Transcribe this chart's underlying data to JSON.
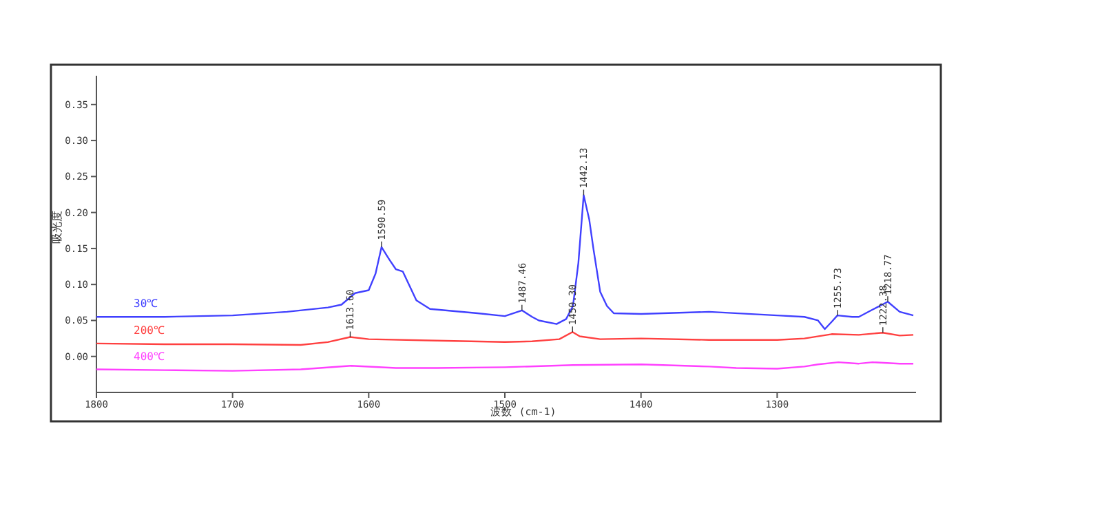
{
  "chart_data": {
    "type": "line",
    "xlabel": "波数 (cm-1)",
    "ylabel": "吸光度",
    "xlim": [
      1800,
      1198
    ],
    "ylim": [
      -0.05,
      0.39
    ],
    "xticks": [
      1800,
      1700,
      1600,
      1500,
      1400,
      1300
    ],
    "yticks": [
      {
        "value": 0,
        "label": "0.00"
      },
      {
        "value": 0.05,
        "label": "0.05"
      },
      {
        "value": 0.1,
        "label": "0.10"
      },
      {
        "value": 0.15,
        "label": "0.15"
      },
      {
        "value": 0.2,
        "label": "0.20"
      },
      {
        "value": 0.25,
        "label": "0.25"
      },
      {
        "value": 0.3,
        "label": "0.30"
      },
      {
        "value": 0.35,
        "label": "0.35"
      }
    ],
    "grid": false,
    "legend": false,
    "marker": "none",
    "line_style": "solid",
    "series": [
      {
        "name": "30℃",
        "color": "#4040ff",
        "x": [
          1800,
          1750,
          1700,
          1660,
          1630,
          1620,
          1610,
          1600,
          1595,
          1590.59,
          1585,
          1580,
          1575,
          1570,
          1565,
          1555,
          1520,
          1500,
          1487.46,
          1480,
          1475,
          1462,
          1455,
          1450,
          1446,
          1442.13,
          1438,
          1435,
          1430,
          1425,
          1420,
          1400,
          1350,
          1300,
          1280,
          1270,
          1265,
          1260,
          1255.73,
          1245,
          1240,
          1230,
          1218.77,
          1210,
          1200
        ],
        "values": [
          0.055,
          0.055,
          0.057,
          0.062,
          0.068,
          0.072,
          0.088,
          0.092,
          0.115,
          0.152,
          0.135,
          0.121,
          0.118,
          0.098,
          0.078,
          0.066,
          0.06,
          0.056,
          0.064,
          0.055,
          0.05,
          0.045,
          0.052,
          0.07,
          0.13,
          0.224,
          0.19,
          0.15,
          0.09,
          0.07,
          0.06,
          0.059,
          0.062,
          0.057,
          0.055,
          0.05,
          0.038,
          0.048,
          0.057,
          0.055,
          0.055,
          0.065,
          0.076,
          0.062,
          0.057
        ]
      },
      {
        "name": "200℃",
        "color": "#ff4040",
        "x": [
          1800,
          1750,
          1700,
          1650,
          1630,
          1613.6,
          1600,
          1550,
          1500,
          1480,
          1460,
          1450.3,
          1445,
          1430,
          1400,
          1350,
          1300,
          1280,
          1260,
          1240,
          1222.38,
          1210,
          1200
        ],
        "values": [
          0.018,
          0.017,
          0.017,
          0.016,
          0.02,
          0.027,
          0.024,
          0.022,
          0.02,
          0.021,
          0.024,
          0.034,
          0.028,
          0.024,
          0.025,
          0.023,
          0.023,
          0.025,
          0.031,
          0.03,
          0.033,
          0.029,
          0.03
        ]
      },
      {
        "name": "400℃",
        "color": "#ff40ff",
        "x": [
          1800,
          1750,
          1700,
          1650,
          1613,
          1580,
          1550,
          1500,
          1450,
          1400,
          1350,
          1330,
          1300,
          1280,
          1270,
          1255,
          1240,
          1230,
          1210,
          1200
        ],
        "values": [
          -0.018,
          -0.019,
          -0.02,
          -0.018,
          -0.013,
          -0.016,
          -0.016,
          -0.015,
          -0.012,
          -0.011,
          -0.014,
          -0.016,
          -0.017,
          -0.014,
          -0.011,
          -0.008,
          -0.01,
          -0.008,
          -0.01,
          -0.01
        ]
      }
    ],
    "annotations": [
      {
        "text": "1590.59",
        "x": 1590.59,
        "y": 0.152
      },
      {
        "text": "1487.46",
        "x": 1487.46,
        "y": 0.064
      },
      {
        "text": "1442.13",
        "x": 1442.13,
        "y": 0.224
      },
      {
        "text": "1255.73",
        "x": 1255.73,
        "y": 0.057
      },
      {
        "text": "1218.77",
        "x": 1218.77,
        "y": 0.076
      },
      {
        "text": "1613.60",
        "x": 1613.6,
        "y": 0.027
      },
      {
        "text": "1450.30",
        "x": 1450.3,
        "y": 0.034
      },
      {
        "text": "1222.38",
        "x": 1222.38,
        "y": 0.033
      }
    ]
  }
}
